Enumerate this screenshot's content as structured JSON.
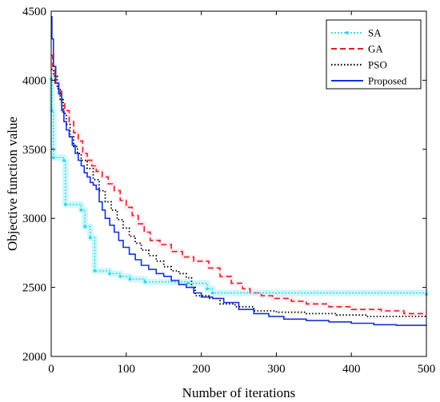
{
  "chart_data": {
    "type": "line",
    "title": "",
    "xlabel": "Number of iterations",
    "ylabel": "Objective function value",
    "xlim": [
      0,
      500
    ],
    "ylim": [
      2000,
      4500
    ],
    "xticks": [
      0,
      100,
      200,
      300,
      400,
      500
    ],
    "yticks": [
      2000,
      2500,
      3000,
      3500,
      4000,
      4500
    ],
    "grid": false,
    "legend_position": "top-right",
    "series": [
      {
        "name": "SA",
        "color": "#2fd6e6",
        "style": "dotted-marker",
        "points": [
          [
            0,
            4010
          ],
          [
            1,
            3780
          ],
          [
            3,
            3440
          ],
          [
            17,
            3420
          ],
          [
            19,
            3100
          ],
          [
            40,
            3060
          ],
          [
            45,
            2940
          ],
          [
            52,
            2860
          ],
          [
            58,
            2620
          ],
          [
            78,
            2600
          ],
          [
            92,
            2580
          ],
          [
            105,
            2560
          ],
          [
            125,
            2540
          ],
          [
            182,
            2530
          ],
          [
            208,
            2490
          ],
          [
            215,
            2460
          ],
          [
            500,
            2450
          ]
        ]
      },
      {
        "name": "GA",
        "color": "#e02020",
        "style": "dashed",
        "points": [
          [
            0,
            4180
          ],
          [
            2,
            4100
          ],
          [
            5,
            3980
          ],
          [
            10,
            3920
          ],
          [
            14,
            3830
          ],
          [
            18,
            3780
          ],
          [
            24,
            3700
          ],
          [
            30,
            3620
          ],
          [
            36,
            3560
          ],
          [
            42,
            3470
          ],
          [
            48,
            3420
          ],
          [
            54,
            3380
          ],
          [
            60,
            3340
          ],
          [
            68,
            3300
          ],
          [
            76,
            3250
          ],
          [
            84,
            3200
          ],
          [
            92,
            3130
          ],
          [
            100,
            3080
          ],
          [
            108,
            3020
          ],
          [
            116,
            2960
          ],
          [
            124,
            2900
          ],
          [
            132,
            2840
          ],
          [
            145,
            2810
          ],
          [
            160,
            2760
          ],
          [
            175,
            2720
          ],
          [
            190,
            2690
          ],
          [
            210,
            2640
          ],
          [
            225,
            2580
          ],
          [
            240,
            2530
          ],
          [
            255,
            2490
          ],
          [
            265,
            2460
          ],
          [
            280,
            2440
          ],
          [
            295,
            2420
          ],
          [
            320,
            2400
          ],
          [
            340,
            2380
          ],
          [
            370,
            2360
          ],
          [
            400,
            2340
          ],
          [
            440,
            2330
          ],
          [
            470,
            2310
          ],
          [
            500,
            2310
          ]
        ]
      },
      {
        "name": "PSO",
        "color": "#000000",
        "style": "dotted",
        "points": [
          [
            0,
            4080
          ],
          [
            3,
            4030
          ],
          [
            8,
            3940
          ],
          [
            12,
            3860
          ],
          [
            16,
            3760
          ],
          [
            20,
            3680
          ],
          [
            25,
            3590
          ],
          [
            30,
            3520
          ],
          [
            35,
            3470
          ],
          [
            40,
            3420
          ],
          [
            48,
            3360
          ],
          [
            56,
            3280
          ],
          [
            64,
            3200
          ],
          [
            72,
            3120
          ],
          [
            80,
            3060
          ],
          [
            88,
            2990
          ],
          [
            96,
            2930
          ],
          [
            104,
            2870
          ],
          [
            112,
            2820
          ],
          [
            120,
            2770
          ],
          [
            130,
            2730
          ],
          [
            140,
            2690
          ],
          [
            150,
            2650
          ],
          [
            160,
            2620
          ],
          [
            170,
            2600
          ],
          [
            180,
            2570
          ],
          [
            187,
            2500
          ],
          [
            192,
            2440
          ],
          [
            210,
            2420
          ],
          [
            225,
            2380
          ],
          [
            245,
            2360
          ],
          [
            270,
            2330
          ],
          [
            300,
            2320
          ],
          [
            340,
            2310
          ],
          [
            380,
            2300
          ],
          [
            420,
            2290
          ],
          [
            460,
            2290
          ],
          [
            500,
            2285
          ]
        ]
      },
      {
        "name": "Proposed",
        "color": "#1530d8",
        "style": "solid",
        "points": [
          [
            0,
            4460
          ],
          [
            1,
            4300
          ],
          [
            3,
            4100
          ],
          [
            6,
            3980
          ],
          [
            10,
            3900
          ],
          [
            14,
            3780
          ],
          [
            17,
            3700
          ],
          [
            20,
            3640
          ],
          [
            24,
            3590
          ],
          [
            28,
            3530
          ],
          [
            32,
            3470
          ],
          [
            36,
            3420
          ],
          [
            40,
            3380
          ],
          [
            44,
            3330
          ],
          [
            48,
            3300
          ],
          [
            52,
            3260
          ],
          [
            56,
            3240
          ],
          [
            60,
            3210
          ],
          [
            64,
            3120
          ],
          [
            68,
            3060
          ],
          [
            72,
            3000
          ],
          [
            78,
            2950
          ],
          [
            84,
            2900
          ],
          [
            90,
            2840
          ],
          [
            96,
            2790
          ],
          [
            104,
            2740
          ],
          [
            112,
            2700
          ],
          [
            120,
            2660
          ],
          [
            130,
            2630
          ],
          [
            140,
            2600
          ],
          [
            150,
            2580
          ],
          [
            160,
            2550
          ],
          [
            170,
            2520
          ],
          [
            180,
            2500
          ],
          [
            190,
            2460
          ],
          [
            200,
            2430
          ],
          [
            215,
            2420
          ],
          [
            230,
            2390
          ],
          [
            250,
            2340
          ],
          [
            270,
            2310
          ],
          [
            290,
            2290
          ],
          [
            310,
            2270
          ],
          [
            340,
            2260
          ],
          [
            370,
            2250
          ],
          [
            400,
            2240
          ],
          [
            430,
            2230
          ],
          [
            460,
            2225
          ],
          [
            500,
            2222
          ]
        ]
      }
    ]
  }
}
